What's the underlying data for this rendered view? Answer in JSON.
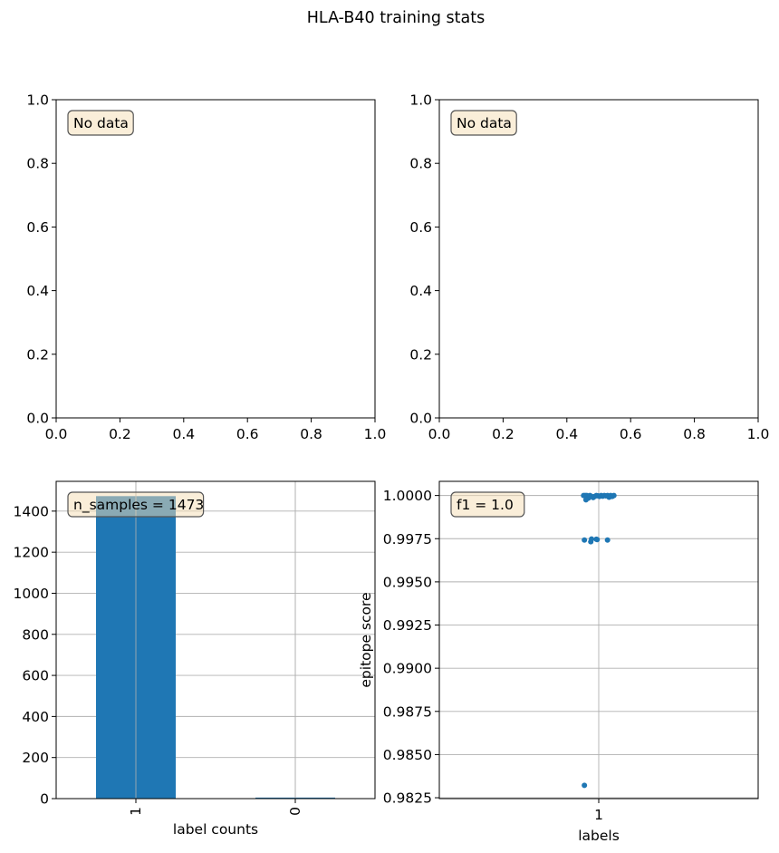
{
  "figure": {
    "title": "HLA-B40 training stats"
  },
  "chart_data": [
    {
      "type": "scatter",
      "xlim": [
        0.0,
        1.0
      ],
      "ylim": [
        0.0,
        1.0
      ],
      "xticks": [
        "0.0",
        "0.2",
        "0.4",
        "0.6",
        "0.8",
        "1.0"
      ],
      "yticks": [
        "0.0",
        "0.2",
        "0.4",
        "0.6",
        "0.8",
        "1.0"
      ],
      "annotation": "No data",
      "grid": false
    },
    {
      "type": "scatter",
      "xlim": [
        0.0,
        1.0
      ],
      "ylim": [
        0.0,
        1.0
      ],
      "xticks": [
        "0.0",
        "0.2",
        "0.4",
        "0.6",
        "0.8",
        "1.0"
      ],
      "yticks": [
        "0.0",
        "0.2",
        "0.4",
        "0.6",
        "0.8",
        "1.0"
      ],
      "annotation": "No data",
      "grid": false
    },
    {
      "type": "bar",
      "categories": [
        "1",
        "0"
      ],
      "values": [
        1473,
        5
      ],
      "ylim": [
        0,
        1545
      ],
      "yticks": [
        "0",
        "200",
        "400",
        "600",
        "800",
        "1000",
        "1200",
        "1400"
      ],
      "xlabel": "label counts",
      "annotation": "n_samples = 1473",
      "grid": true,
      "color": "#1f77b4"
    },
    {
      "type": "scatter",
      "categories": [
        "1"
      ],
      "ylim": [
        0.98245,
        1.00082
      ],
      "yticks": [
        "0.9825",
        "0.9850",
        "0.9875",
        "0.9900",
        "0.9925",
        "0.9950",
        "0.9975",
        "1.0000"
      ],
      "xlabel": "labels",
      "ylabel": "epitope score",
      "annotation": "f1 = 1.0",
      "grid": true,
      "color": "#1f77b4",
      "points": [
        {
          "x": -0.19,
          "y": 1.0
        },
        {
          "x": -0.17,
          "y": 1.0
        },
        {
          "x": -0.15,
          "y": 1.0
        },
        {
          "x": -0.13,
          "y": 0.99985
        },
        {
          "x": -0.11,
          "y": 1.0
        },
        {
          "x": -0.09,
          "y": 0.99995
        },
        {
          "x": -0.07,
          "y": 0.99988
        },
        {
          "x": -0.05,
          "y": 0.99995
        },
        {
          "x": -0.03,
          "y": 1.0
        },
        {
          "x": -0.01,
          "y": 0.99998
        },
        {
          "x": 0.01,
          "y": 0.99995
        },
        {
          "x": 0.03,
          "y": 1.0
        },
        {
          "x": 0.05,
          "y": 0.99996
        },
        {
          "x": 0.07,
          "y": 1.0
        },
        {
          "x": 0.09,
          "y": 0.99998
        },
        {
          "x": 0.11,
          "y": 1.0
        },
        {
          "x": 0.13,
          "y": 0.9999
        },
        {
          "x": 0.15,
          "y": 1.0
        },
        {
          "x": 0.17,
          "y": 0.99995
        },
        {
          "x": 0.19,
          "y": 1.0
        },
        {
          "x": -0.16,
          "y": 0.99975
        },
        {
          "x": -0.18,
          "y": 0.99742
        },
        {
          "x": -0.09,
          "y": 0.99748
        },
        {
          "x": -0.1,
          "y": 0.99732
        },
        {
          "x": -0.03,
          "y": 0.99747
        },
        {
          "x": -0.02,
          "y": 0.99745
        },
        {
          "x": 0.11,
          "y": 0.99742
        },
        {
          "x": -0.18,
          "y": 0.98322
        }
      ]
    }
  ]
}
